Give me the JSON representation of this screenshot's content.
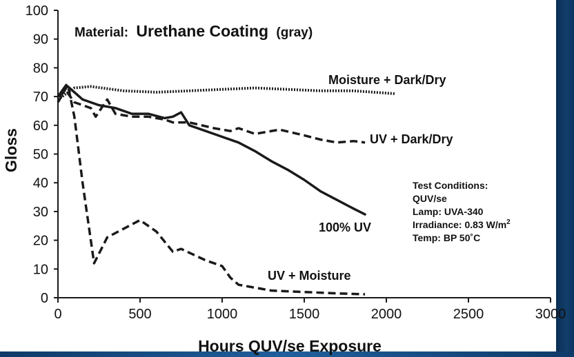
{
  "chart_data": {
    "type": "line",
    "title_prefix": "Material:",
    "title_main": "Urethane Coating",
    "title_suffix": "(gray)",
    "xlabel": "Hours QUV/se Exposure",
    "ylabel": "Gloss",
    "xlim": [
      0,
      3000
    ],
    "ylim": [
      0,
      100
    ],
    "xticks": [
      0,
      500,
      1000,
      1500,
      2000,
      2500,
      3000
    ],
    "yticks": [
      0,
      10,
      20,
      30,
      40,
      50,
      60,
      70,
      80,
      90,
      100
    ],
    "grid": false,
    "series": [
      {
        "name": "Moisture + Dark/Dry",
        "style": "dotted",
        "x": [
          0,
          100,
          200,
          400,
          600,
          800,
          1000,
          1200,
          1400,
          1600,
          1800,
          2050
        ],
        "y": [
          69,
          73,
          73.5,
          72,
          71.5,
          72,
          72.5,
          73,
          72.5,
          72,
          72,
          71
        ]
      },
      {
        "name": "UV + Dark/Dry",
        "style": "dashed",
        "x": [
          0,
          50,
          100,
          200,
          230,
          300,
          350,
          450,
          550,
          650,
          700,
          800,
          950,
          1050,
          1100,
          1200,
          1350,
          1500,
          1600,
          1700,
          1800,
          1870
        ],
        "y": [
          70,
          72,
          68,
          66,
          63,
          69,
          64,
          63,
          63,
          62,
          61,
          61,
          59,
          58,
          59,
          57,
          58.5,
          56.5,
          55,
          54,
          54.5,
          54
        ]
      },
      {
        "name": "100% UV",
        "style": "solid",
        "x": [
          0,
          50,
          150,
          250,
          350,
          450,
          550,
          650,
          700,
          750,
          800,
          900,
          1000,
          1100,
          1200,
          1300,
          1400,
          1500,
          1600,
          1700,
          1800,
          1870
        ],
        "y": [
          70,
          74,
          69,
          67,
          66,
          64,
          64,
          62.5,
          63,
          64.5,
          60,
          58,
          56,
          54,
          51,
          47.5,
          44.5,
          41,
          37,
          34,
          31,
          29
        ]
      },
      {
        "name": "UV + Moisture",
        "style": "dashed",
        "x": [
          0,
          60,
          100,
          150,
          220,
          300,
          400,
          500,
          600,
          700,
          750,
          900,
          1000,
          1050,
          1100,
          1300,
          1500,
          1700,
          1870
        ],
        "y": [
          68,
          74,
          63,
          40,
          12,
          21,
          24,
          27,
          23,
          16,
          17,
          13,
          11,
          7,
          4.5,
          2.5,
          2,
          1.5,
          1.2
        ]
      }
    ],
    "annotation_lines": [
      "Test Conditions:",
      "QUV/se",
      "Lamp: UVA-340",
      "Irradiance: 0.83 W/m",
      "Temp: BP 50˚C"
    ],
    "irradiance_superscript": "2"
  },
  "colors": {
    "line": "#1a1a1a",
    "frame": "#123e6b",
    "background": "#ffffff"
  }
}
